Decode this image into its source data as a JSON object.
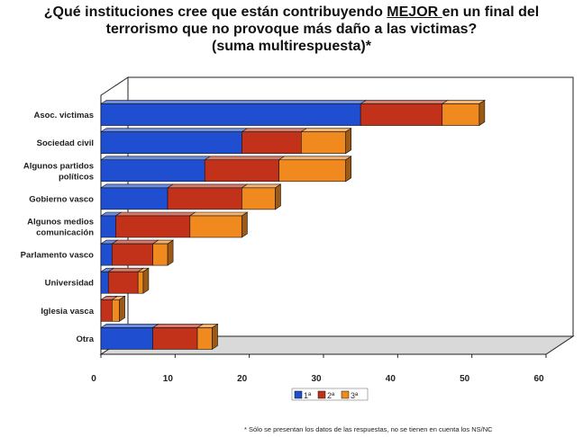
{
  "title": {
    "line1_before": "¿Qué instituciones cree que están contribuyendo ",
    "line1_emphasis": "MEJOR ",
    "line1_after": "en un final del",
    "line2": "terrorismo que no provoque más daño a las victimas?",
    "line3": "(suma multirespuesta)*"
  },
  "footnote": "* Sólo se presentan los datos de las respuestas, no se tienen en cuenta los NS/NC",
  "colors": {
    "first": "#1f4fd0",
    "second": "#c2321a",
    "third": "#f08a1e"
  },
  "chart_data": {
    "type": "bar",
    "orientation": "horizontal",
    "stacked": true,
    "categories": [
      [
        "Asoc. victimas"
      ],
      [
        "Sociedad civil"
      ],
      [
        "Algunos partidos",
        "políticos"
      ],
      [
        "Gobierno vasco"
      ],
      [
        "Algunos medios",
        "comunicación"
      ],
      [
        "Parlamento vasco"
      ],
      [
        "Universidad"
      ],
      [
        "Iglesia vasca"
      ],
      [
        "Otra"
      ]
    ],
    "series": [
      {
        "name": "1ª",
        "color": "#1f4fd0",
        "values": [
          35,
          19,
          14,
          9,
          2,
          1.5,
          1,
          0,
          7
        ]
      },
      {
        "name": "2ª",
        "color": "#c2321a",
        "values": [
          11,
          8,
          10,
          10,
          10,
          5.5,
          4,
          1.5,
          6
        ]
      },
      {
        "name": "3ª",
        "color": "#f08a1e",
        "values": [
          5,
          6,
          9,
          4.5,
          7,
          2,
          0.7,
          1,
          2
        ]
      }
    ],
    "xlim": [
      0,
      60
    ],
    "xticks": [
      "0",
      "10",
      "20",
      "30",
      "40",
      "50",
      "60"
    ],
    "grid": false,
    "legend_position": "bottom-center"
  }
}
